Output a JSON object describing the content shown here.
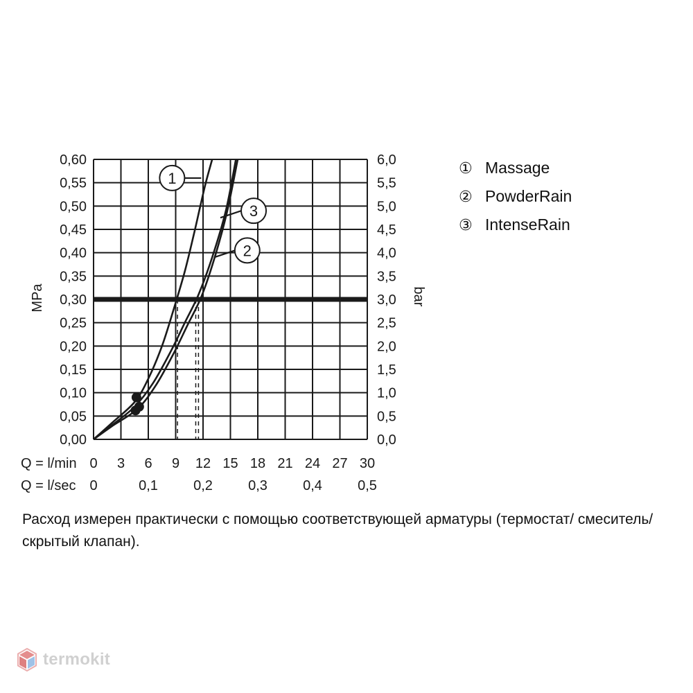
{
  "chart_data": {
    "type": "line",
    "title": "",
    "ylabel_left": "MPa",
    "ylabel_right": "bar",
    "y_ticks_left": [
      "0,00",
      "0,05",
      "0,10",
      "0,15",
      "0,20",
      "0,25",
      "0,30",
      "0,35",
      "0,40",
      "0,45",
      "0,50",
      "0,55",
      "0,60"
    ],
    "y_ticks_right": [
      "0,0",
      "0,5",
      "1,0",
      "1,5",
      "2,0",
      "2,5",
      "3,0",
      "3,5",
      "4,0",
      "4,5",
      "5,0",
      "5,5",
      "6,0"
    ],
    "x_row1_label": "Q = l/min",
    "x_ticks_lmin": [
      "0",
      "3",
      "6",
      "9",
      "12",
      "15",
      "18",
      "21",
      "24",
      "27",
      "30"
    ],
    "x_row2_label": "Q = l/sec",
    "x_ticks_lsec": [
      "0",
      "0,1",
      "0,2",
      "0,3",
      "0,4",
      "0,5"
    ],
    "xlim": [
      0,
      30
    ],
    "ylim": [
      0,
      0.6
    ],
    "grid": true,
    "reference_line": {
      "y": 0.3
    },
    "series": [
      {
        "marker": "1",
        "name": "Massage",
        "x": [
          0,
          2,
          4.5,
          6,
          7.5,
          8.8,
          10,
          11,
          11.7,
          12.3,
          13
        ],
        "y": [
          0,
          0.035,
          0.08,
          0.13,
          0.2,
          0.28,
          0.36,
          0.44,
          0.5,
          0.55,
          0.6
        ],
        "drop_x": 9.2
      },
      {
        "marker": "2",
        "name": "PowderRain",
        "x": [
          0,
          2,
          4.5,
          6.5,
          8.5,
          10,
          11.5,
          13,
          14.5,
          15.6
        ],
        "y": [
          0,
          0.03,
          0.07,
          0.12,
          0.19,
          0.25,
          0.31,
          0.39,
          0.49,
          0.6
        ],
        "drop_x": 11.5
      },
      {
        "marker": "3",
        "name": "IntenseRain",
        "x": [
          0,
          2,
          4.8,
          6.8,
          8.8,
          10.3,
          11.8,
          13.2,
          14.6,
          15.8
        ],
        "y": [
          0,
          0.028,
          0.065,
          0.115,
          0.185,
          0.245,
          0.305,
          0.385,
          0.485,
          0.6
        ],
        "drop_x": 11.2
      }
    ],
    "markers_at_start": [
      {
        "x": 4.7,
        "y": 0.09
      },
      {
        "x": 5.0,
        "y": 0.07
      },
      {
        "x": 4.6,
        "y": 0.062
      }
    ],
    "callouts": [
      {
        "label": "1",
        "series": 0,
        "at": [
          11.8,
          0.56
        ]
      },
      {
        "label": "3",
        "series": 2,
        "at": [
          13.9,
          0.475
        ]
      },
      {
        "label": "2",
        "series": 1,
        "at": [
          13.2,
          0.39
        ]
      }
    ]
  },
  "legend": {
    "items": [
      {
        "marker": "①",
        "label": "Massage"
      },
      {
        "marker": "②",
        "label": "PowderRain"
      },
      {
        "marker": "③",
        "label": "IntenseRain"
      }
    ]
  },
  "note": "Расход измерен практически с помощью соответствующей арматуры (термостат/ смеситель/скрытый клапан).",
  "watermark": {
    "text": "termokit"
  },
  "colors": {
    "line": "#1a1a1a",
    "grid": "#1a1a1a",
    "watermark_red": "#d9534f",
    "watermark_blue": "#5b9bd5",
    "watermark_text": "#c8c8c8"
  }
}
